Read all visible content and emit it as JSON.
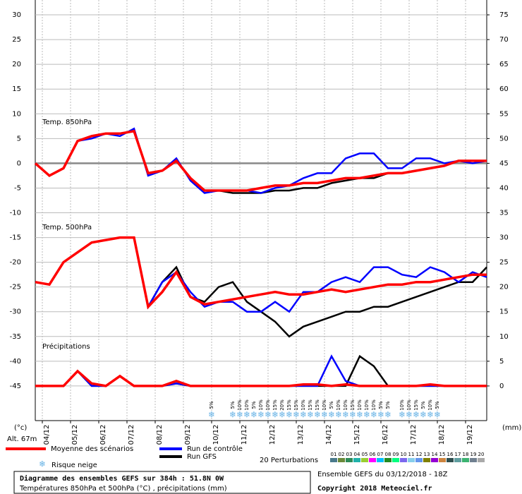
{
  "chart_data": {
    "type": "line",
    "annotations": [
      "Temp. 850hPa",
      "Temp. 500hPa",
      "Précipitations"
    ],
    "y_unit_label": "(°c)",
    "y2_unit_label": "(mm)",
    "altitude_label": "Alt. 67m",
    "xlim": [
      0,
      384
    ],
    "ylim": [
      -52,
      33
    ],
    "y2lim": [
      -7,
      78
    ],
    "grid": true,
    "yticks": [
      -45,
      -40,
      -35,
      -30,
      -25,
      -20,
      -15,
      -10,
      -5,
      0,
      5,
      10,
      15,
      20,
      25,
      30
    ],
    "y2ticks": [
      0,
      5,
      10,
      15,
      20,
      25,
      30,
      35,
      40,
      45,
      50,
      55,
      60,
      65,
      70,
      75
    ],
    "xticks": [
      {
        "value": 6,
        "label": "04/12"
      },
      {
        "value": 30,
        "label": "05/12"
      },
      {
        "value": 54,
        "label": "06/12"
      },
      {
        "value": 78,
        "label": "07/12"
      },
      {
        "value": 102,
        "label": "08/12"
      },
      {
        "value": 126,
        "label": "09/12"
      },
      {
        "value": 150,
        "label": "10/12"
      },
      {
        "value": 174,
        "label": "11/12"
      },
      {
        "value": 198,
        "label": "12/12"
      },
      {
        "value": 222,
        "label": "13/12"
      },
      {
        "value": 246,
        "label": "14/12"
      },
      {
        "value": 270,
        "label": "15/12"
      },
      {
        "value": 294,
        "label": "16/12"
      },
      {
        "value": 318,
        "label": "17/12"
      },
      {
        "value": 342,
        "label": "18/12"
      },
      {
        "value": 366,
        "label": "19/12"
      }
    ],
    "x": [
      0,
      12,
      24,
      36,
      48,
      60,
      72,
      84,
      96,
      108,
      120,
      132,
      144,
      156,
      168,
      180,
      192,
      204,
      216,
      228,
      240,
      252,
      264,
      276,
      288,
      300,
      312,
      324,
      336,
      348,
      360,
      372,
      384
    ],
    "series": [
      {
        "name": "Moyenne des scénarios",
        "color": "#ff0000",
        "t850": [
          0,
          -2.5,
          -1,
          4.5,
          5.5,
          6,
          6,
          6.5,
          -2,
          -1.5,
          0.5,
          -3,
          -5.5,
          -5.5,
          -5.5,
          -5.5,
          -5,
          -4.5,
          -4.5,
          -4,
          -4,
          -3.5,
          -3,
          -3,
          -2.5,
          -2,
          -2,
          -1.5,
          -1,
          -0.5,
          0.5,
          0.5,
          0.5
        ],
        "t500": [
          -24,
          -24.5,
          -20,
          -18,
          -16,
          -15.5,
          -15,
          -15,
          -29,
          -26,
          -22,
          -27,
          -28.5,
          -28,
          -27.5,
          -27,
          -26.5,
          -26,
          -26.5,
          -26.5,
          -26,
          -25.5,
          -26,
          -25.5,
          -25,
          -24.5,
          -24.5,
          -24,
          -24,
          -23.5,
          -23,
          -22.5,
          -22.5
        ],
        "precip": [
          0,
          0,
          0,
          3,
          0.5,
          0,
          2,
          0,
          0,
          0,
          1,
          0,
          0,
          0,
          0,
          0,
          0,
          0,
          0,
          0.3,
          0.3,
          0,
          0.3,
          0,
          0,
          0,
          0,
          0,
          0.3,
          0,
          0,
          0,
          0
        ]
      },
      {
        "name": "Run de contrôle",
        "color": "#0000ff",
        "t850": [
          0,
          -2.5,
          -1,
          4.5,
          5,
          6,
          5.5,
          7,
          -2.5,
          -1.5,
          1,
          -3.5,
          -6,
          -5.5,
          -5.5,
          -5.5,
          -6,
          -5,
          -4.5,
          -3,
          -2,
          -2,
          1,
          2,
          2,
          -1,
          -1,
          1,
          1,
          0,
          0.5,
          0,
          0.5
        ],
        "t500": [
          -24,
          -24.5,
          -20,
          -18,
          -16,
          -15.5,
          -15,
          -15,
          -29,
          -24,
          -22,
          -26,
          -29,
          -28,
          -28,
          -30,
          -30,
          -28,
          -30,
          -26,
          -26,
          -24,
          -23,
          -24,
          -21,
          -21,
          -22.5,
          -23,
          -21,
          -22,
          -24,
          -22,
          -23
        ],
        "precip": [
          0,
          0,
          0,
          3,
          0,
          0,
          2,
          0,
          0,
          0,
          0.5,
          0,
          0,
          0,
          0,
          0,
          0,
          0,
          0,
          0,
          0,
          6,
          1,
          0,
          0,
          0,
          0,
          0,
          0,
          0,
          0,
          0,
          0
        ]
      },
      {
        "name": "Run GFS",
        "color": "#000000",
        "t850": [
          0,
          -2.5,
          -1,
          4.5,
          5.5,
          6,
          6,
          6.5,
          -2,
          -1.5,
          0.5,
          -3,
          -5.5,
          -5.5,
          -6,
          -6,
          -6,
          -5.5,
          -5.5,
          -5,
          -5,
          -4,
          -3.5,
          -3,
          -3,
          -2,
          -2,
          -1.5,
          -1,
          -0.5,
          0.5,
          0.5,
          0.5
        ],
        "t500": [
          -24,
          -24.5,
          -20,
          -18,
          -16,
          -15.5,
          -15,
          -15,
          -29,
          -24,
          -21,
          -27,
          -28,
          -25,
          -24,
          -28,
          -30,
          -32,
          -35,
          -33,
          -32,
          -31,
          -30,
          -30,
          -29,
          -29,
          -28,
          -27,
          -26,
          -25,
          -24,
          -24,
          -21
        ],
        "precip": [
          0,
          0,
          0,
          3,
          0,
          0,
          2,
          0,
          0,
          0,
          0.5,
          0,
          0,
          0,
          0,
          0,
          0,
          0,
          0,
          0,
          0,
          0,
          0,
          6,
          4,
          0,
          0,
          0,
          0,
          0,
          0,
          0,
          0
        ]
      }
    ],
    "snow_risk": {
      "name": "Risque neige",
      "x": [
        150,
        168,
        174,
        180,
        186,
        192,
        198,
        204,
        210,
        216,
        222,
        228,
        234,
        240,
        246,
        252,
        258,
        264,
        270,
        276,
        282,
        288,
        294,
        300,
        312,
        318,
        324,
        330,
        336,
        342
      ],
      "values": [
        5,
        5,
        10,
        10,
        5,
        10,
        10,
        15,
        20,
        15,
        15,
        10,
        15,
        15,
        10,
        5,
        10,
        10,
        15,
        10,
        10,
        10,
        5,
        5,
        10,
        10,
        15,
        5,
        10,
        5
      ],
      "value_labels": [
        "5%",
        "5%",
        "10%",
        "10%",
        "5%",
        "10%",
        "10%",
        "15%",
        "20%",
        "15%",
        "15%",
        "10%",
        "15%",
        "15%",
        "10%",
        "5%",
        "10%",
        "10%",
        "15%",
        "10%",
        "10%",
        "10%",
        "5%",
        "5%",
        "10%",
        "10%",
        "15%",
        "5%",
        "10%",
        "5%"
      ]
    },
    "perturbations": {
      "title": "20 Perturbations",
      "labels": [
        "01",
        "02",
        "03",
        "04",
        "05",
        "06",
        "07",
        "08",
        "09",
        "10",
        "11",
        "12",
        "13",
        "14",
        "15",
        "16",
        "17",
        "18",
        "19",
        "20"
      ],
      "colors": [
        "#4a7a8c",
        "#6a8a3a",
        "#2e8b57",
        "#20b2aa",
        "#9acd32",
        "#ff00ff",
        "#00bfff",
        "#228b22",
        "#00ff7f",
        "#7b68ee",
        "#87ceeb",
        "#6495ed",
        "#808000",
        "#9400d3",
        "#cd853f",
        "#2f4f4f",
        "#5f9ea0",
        "#3cb371",
        "#708090",
        "#a9a9a9"
      ]
    },
    "footer": {
      "title": "Diagramme des ensembles GEFS sur 384h : 51.8N 0W",
      "subtitle": "Températures 850hPa et 500hPa (°C) , précipitations (mm)",
      "run": "Ensemble GEFS du 03/12/2018 - 18Z",
      "copyright": "Copyright 2018 Meteociel.fr"
    }
  }
}
